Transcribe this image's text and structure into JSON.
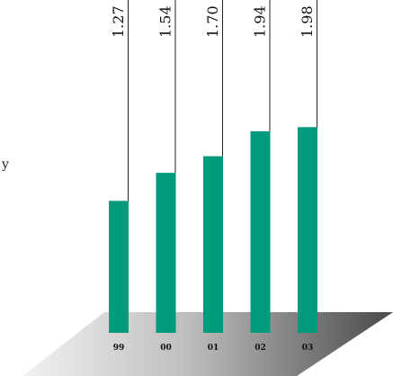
{
  "chart_data": {
    "type": "bar",
    "categories": [
      "99",
      "00",
      "01",
      "02",
      "03"
    ],
    "values": [
      1.27,
      1.54,
      1.7,
      1.94,
      1.98
    ],
    "value_labels": [
      "1.27",
      "1.54",
      "1.70",
      "1.94",
      "1.98"
    ],
    "title": "",
    "xlabel": "",
    "ylabel": "",
    "ylim": [
      0,
      2.45
    ],
    "grid": false,
    "legend": "none",
    "bar_color": "#009b7d",
    "floor_style": "gradient 3d plane"
  },
  "stray_glyph": "y"
}
